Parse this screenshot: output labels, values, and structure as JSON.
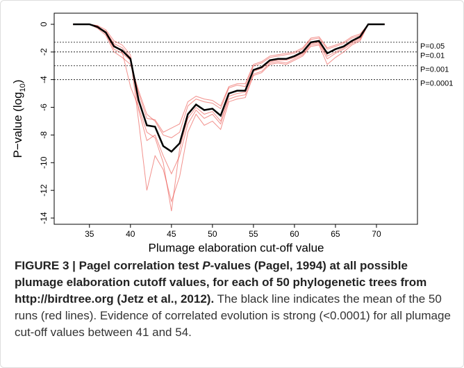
{
  "chart_data": {
    "type": "line",
    "x_label": "Plumage elaboration cut-off value",
    "y_label": {
      "main": "P−value (log",
      "sub": "10",
      "end": ")"
    },
    "x": [
      33,
      34,
      35,
      36,
      37,
      38,
      39,
      40,
      41,
      42,
      43,
      44,
      45,
      46,
      47,
      48,
      49,
      50,
      51,
      52,
      53,
      54,
      55,
      56,
      57,
      58,
      59,
      60,
      61,
      62,
      63,
      64,
      65,
      66,
      67,
      68,
      69,
      70,
      71
    ],
    "series": [
      {
        "color": "#e8372f",
        "values": [
          0,
          0,
          0,
          -0.1,
          -0.4,
          -1.2,
          -1.5,
          -2.2,
          -6.2,
          -8.4,
          -8.0,
          -9.5,
          -10.8,
          -9.5,
          -7.2,
          -6.2,
          -6.8,
          -6.5,
          -7.2,
          -5.4,
          -5.2,
          -5.1,
          -3.6,
          -3.4,
          -2.8,
          -2.7,
          -2.8,
          -2.5,
          -2.2,
          -1.5,
          -1.4,
          -2.5,
          -2.1,
          -1.8,
          -1.4,
          -1.1,
          0,
          0,
          0
        ]
      },
      {
        "color": "#e8372f",
        "values": [
          0,
          0,
          0,
          -0.3,
          -0.8,
          -2.0,
          -2.4,
          -2.9,
          -4.8,
          -6.5,
          -7.0,
          -8.0,
          -8.2,
          -7.8,
          -5.9,
          -5.4,
          -5.6,
          -5.7,
          -6.1,
          -4.6,
          -4.4,
          -4.5,
          -3.0,
          -2.8,
          -2.4,
          -2.3,
          -2.2,
          -2.1,
          -1.8,
          -1.1,
          -1.0,
          -1.8,
          -1.6,
          -1.4,
          -1.0,
          -0.8,
          0,
          0,
          0
        ]
      },
      {
        "color": "#e8372f",
        "values": [
          0,
          0,
          0,
          -0.2,
          -0.5,
          -1.4,
          -1.7,
          -2.4,
          -7.0,
          -12.0,
          -9.5,
          -10.5,
          -12.8,
          -11.0,
          -7.8,
          -6.5,
          -7.3,
          -7.0,
          -7.6,
          -5.6,
          -5.4,
          -5.3,
          -3.7,
          -3.5,
          -2.9,
          -2.8,
          -2.9,
          -2.6,
          -2.3,
          -1.6,
          -1.5,
          -2.9,
          -2.4,
          -2.0,
          -1.5,
          -1.2,
          0,
          0,
          0
        ]
      },
      {
        "color": "#e8372f",
        "values": [
          0,
          0,
          0,
          -0.1,
          -0.7,
          -1.8,
          -2.1,
          -2.6,
          -5.0,
          -6.8,
          -6.9,
          -7.8,
          -7.5,
          -7.2,
          -5.6,
          -5.2,
          -5.4,
          -5.5,
          -5.9,
          -4.5,
          -4.3,
          -4.3,
          -2.9,
          -2.7,
          -2.3,
          -2.2,
          -2.1,
          -2.0,
          -1.7,
          -1.0,
          -0.9,
          -1.7,
          -1.5,
          -1.3,
          -0.9,
          -0.7,
          0,
          0,
          0
        ]
      },
      {
        "color": "#e8372f",
        "values": [
          0,
          0,
          0,
          -0.2,
          -0.6,
          -1.5,
          -2.0,
          -4.5,
          -6.0,
          -7.8,
          -8.2,
          -10.0,
          -13.5,
          -9.0,
          -6.8,
          -6.0,
          -6.5,
          -6.3,
          -7.0,
          -5.2,
          -5.0,
          -4.9,
          -3.4,
          -3.2,
          -2.7,
          -2.6,
          -2.6,
          -2.4,
          -2.1,
          -1.4,
          -1.3,
          -2.3,
          -2.0,
          -1.7,
          -1.3,
          -1.0,
          0,
          0,
          0
        ]
      },
      {
        "color": "#000000",
        "values": [
          0,
          0,
          0,
          -0.2,
          -0.6,
          -1.6,
          -1.9,
          -2.5,
          -5.5,
          -7.3,
          -7.4,
          -8.8,
          -9.2,
          -8.6,
          -6.5,
          -5.8,
          -6.2,
          -6.1,
          -6.6,
          -5,
          -4.8,
          -4.8,
          -3.3,
          -3.1,
          -2.6,
          -2.5,
          -2.5,
          -2.3,
          -2.0,
          -1.3,
          -1.2,
          -2.1,
          -1.8,
          -1.6,
          -1.2,
          -0.9,
          0,
          0,
          0
        ]
      }
    ],
    "thresholds": [
      {
        "value": -1.301,
        "label": "P=0.05"
      },
      {
        "value": -2,
        "label": "P=0.01"
      },
      {
        "value": -3,
        "label": "P=0.001"
      },
      {
        "value": -4,
        "label": "P=0.0001"
      }
    ],
    "xlim": [
      30.7,
      75
    ],
    "ylim": [
      -14.45,
      0.8
    ],
    "xticks": [
      35,
      40,
      45,
      50,
      55,
      60,
      65,
      70
    ],
    "yticks": [
      0,
      -2,
      -4,
      -6,
      -8,
      -10,
      -12,
      -14
    ]
  },
  "caption": {
    "bold_1": "FIGURE 3 | Pagel correlation test ",
    "bold_italic": "P",
    "bold_2": "-values (",
    "link_1": "Pagel, 1994",
    "bold_3": ") at all possible plumage elaboration cutoff values, for each of 50 phylogenetic trees from http://birdtree.org (",
    "link_2": "Jetz et al., 2012",
    "bold_4": ").",
    "text": " The black line indicates the mean of the 50 runs (red lines). Evidence of correlated evolution is strong (<0.0001) for all plumage cut-off values between 41 and 54."
  }
}
